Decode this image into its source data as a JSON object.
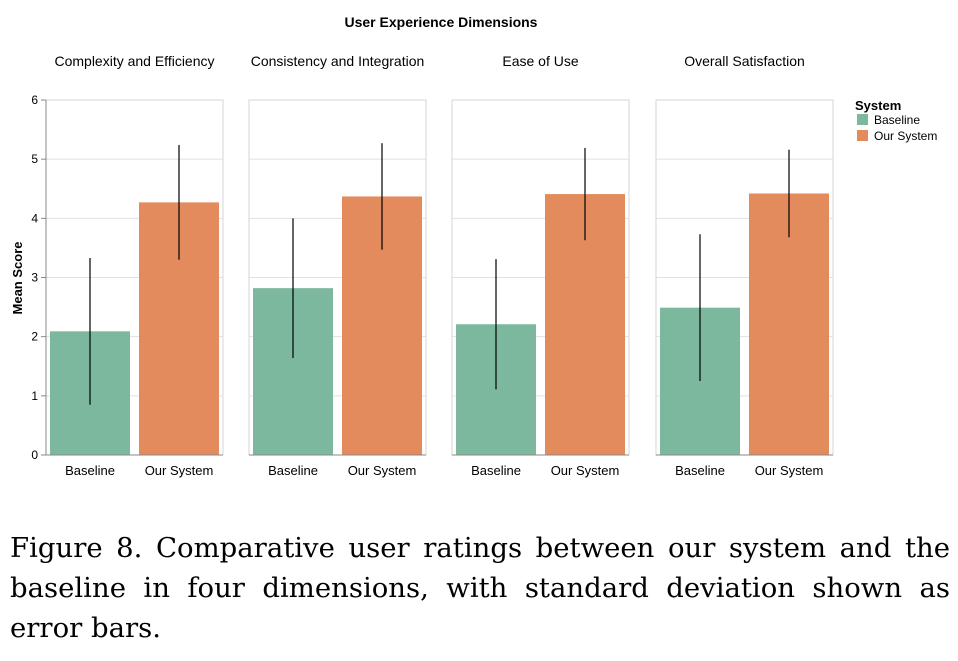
{
  "chart_data": {
    "type": "bar",
    "title": "User Experience Dimensions",
    "ylabel": "Mean Score",
    "ylim": [
      0,
      6
    ],
    "yticks": [
      0,
      1,
      2,
      3,
      4,
      5,
      6
    ],
    "grid": true,
    "legend": {
      "title": "System",
      "placement": "right",
      "entries": [
        {
          "name": "Baseline",
          "color": "#7bb89e"
        },
        {
          "name": "Our System",
          "color": "#e38b5d"
        }
      ]
    },
    "categories": [
      "Baseline",
      "Our System"
    ],
    "facets": [
      {
        "name": "Complexity and Efficiency",
        "values": [
          2.09,
          4.27
        ],
        "std": [
          1.24,
          0.97
        ]
      },
      {
        "name": "Consistency and Integration",
        "values": [
          2.82,
          4.37
        ],
        "std": [
          1.18,
          0.9
        ]
      },
      {
        "name": "Ease of Use",
        "values": [
          2.21,
          4.41
        ],
        "std": [
          1.1,
          0.78
        ]
      },
      {
        "name": "Overall Satisfaction",
        "values": [
          2.49,
          4.42
        ],
        "std": [
          1.24,
          0.74
        ]
      }
    ]
  },
  "caption": "Figure 8. Comparative user ratings between our system and the baseline in four dimensions, with standard deviation shown as error bars."
}
